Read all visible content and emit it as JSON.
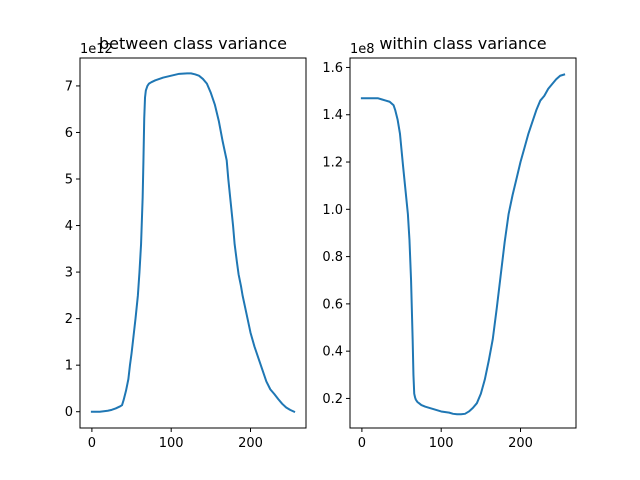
{
  "chart_data": [
    {
      "type": "line",
      "title": "between class variance",
      "xlabel": "",
      "ylabel": "",
      "offset_text": "1e12",
      "xlim": [
        -15,
        270
      ],
      "ylim": [
        -0.35,
        7.6
      ],
      "xticks": [
        0,
        100,
        200
      ],
      "xtick_labels": [
        "0",
        "100",
        "200"
      ],
      "yticks": [
        0,
        1,
        2,
        3,
        4,
        5,
        6,
        7
      ],
      "ytick_labels": [
        "0",
        "1",
        "2",
        "3",
        "4",
        "5",
        "6",
        "7"
      ],
      "grid": false,
      "color": "#1f77b4",
      "series": [
        {
          "x": [
            0,
            10,
            20,
            25,
            30,
            35,
            38,
            40,
            43,
            46,
            48,
            50,
            52,
            55,
            58,
            60,
            62,
            64,
            65,
            66,
            67,
            68,
            70,
            72,
            75,
            80,
            90,
            100,
            110,
            120,
            125,
            130,
            135,
            140,
            145,
            150,
            155,
            160,
            165,
            170,
            172,
            175,
            178,
            180,
            183,
            185,
            188,
            190,
            195,
            200,
            205,
            210,
            215,
            220,
            225,
            230,
            235,
            240,
            245,
            250,
            255
          ],
          "y": [
            0,
            0,
            0.02,
            0.04,
            0.07,
            0.11,
            0.14,
            0.25,
            0.45,
            0.7,
            1.0,
            1.25,
            1.55,
            2.0,
            2.5,
            3.0,
            3.6,
            4.6,
            5.4,
            6.3,
            6.75,
            6.9,
            7.0,
            7.05,
            7.08,
            7.12,
            7.18,
            7.22,
            7.26,
            7.27,
            7.27,
            7.25,
            7.22,
            7.15,
            7.05,
            6.85,
            6.6,
            6.25,
            5.8,
            5.4,
            5.0,
            4.5,
            4.0,
            3.6,
            3.2,
            2.95,
            2.7,
            2.5,
            2.1,
            1.7,
            1.4,
            1.15,
            0.9,
            0.65,
            0.48,
            0.38,
            0.27,
            0.17,
            0.09,
            0.04,
            0.0
          ]
        }
      ]
    },
    {
      "type": "line",
      "title": "within class variance",
      "xlabel": "",
      "ylabel": "",
      "offset_text": "1e8",
      "xlim": [
        -15,
        270
      ],
      "ylim": [
        0.075,
        1.64
      ],
      "xticks": [
        0,
        100,
        200
      ],
      "xtick_labels": [
        "0",
        "100",
        "200"
      ],
      "yticks": [
        0.2,
        0.4,
        0.6,
        0.8,
        1.0,
        1.2,
        1.4,
        1.6
      ],
      "ytick_labels": [
        "0.2",
        "0.4",
        "0.6",
        "0.8",
        "1.0",
        "1.2",
        "1.4",
        "1.6"
      ],
      "grid": false,
      "color": "#1f77b4",
      "series": [
        {
          "x": [
            0,
            10,
            20,
            25,
            30,
            35,
            40,
            42,
            45,
            48,
            50,
            52,
            55,
            58,
            60,
            62,
            64,
            65,
            66,
            67,
            68,
            69,
            70,
            72,
            75,
            80,
            90,
            100,
            110,
            115,
            120,
            125,
            130,
            135,
            140,
            145,
            150,
            155,
            160,
            165,
            170,
            175,
            180,
            185,
            190,
            195,
            200,
            205,
            210,
            215,
            220,
            225,
            230,
            235,
            240,
            245,
            250,
            255
          ],
          "y": [
            1.47,
            1.47,
            1.47,
            1.465,
            1.46,
            1.455,
            1.44,
            1.42,
            1.38,
            1.32,
            1.25,
            1.18,
            1.08,
            0.98,
            0.87,
            0.7,
            0.45,
            0.3,
            0.22,
            0.205,
            0.195,
            0.19,
            0.185,
            0.18,
            0.172,
            0.165,
            0.155,
            0.145,
            0.14,
            0.135,
            0.133,
            0.133,
            0.135,
            0.145,
            0.16,
            0.18,
            0.22,
            0.28,
            0.36,
            0.45,
            0.58,
            0.72,
            0.86,
            0.98,
            1.06,
            1.13,
            1.2,
            1.26,
            1.32,
            1.37,
            1.42,
            1.46,
            1.48,
            1.51,
            1.53,
            1.55,
            1.565,
            1.57
          ]
        }
      ]
    }
  ]
}
